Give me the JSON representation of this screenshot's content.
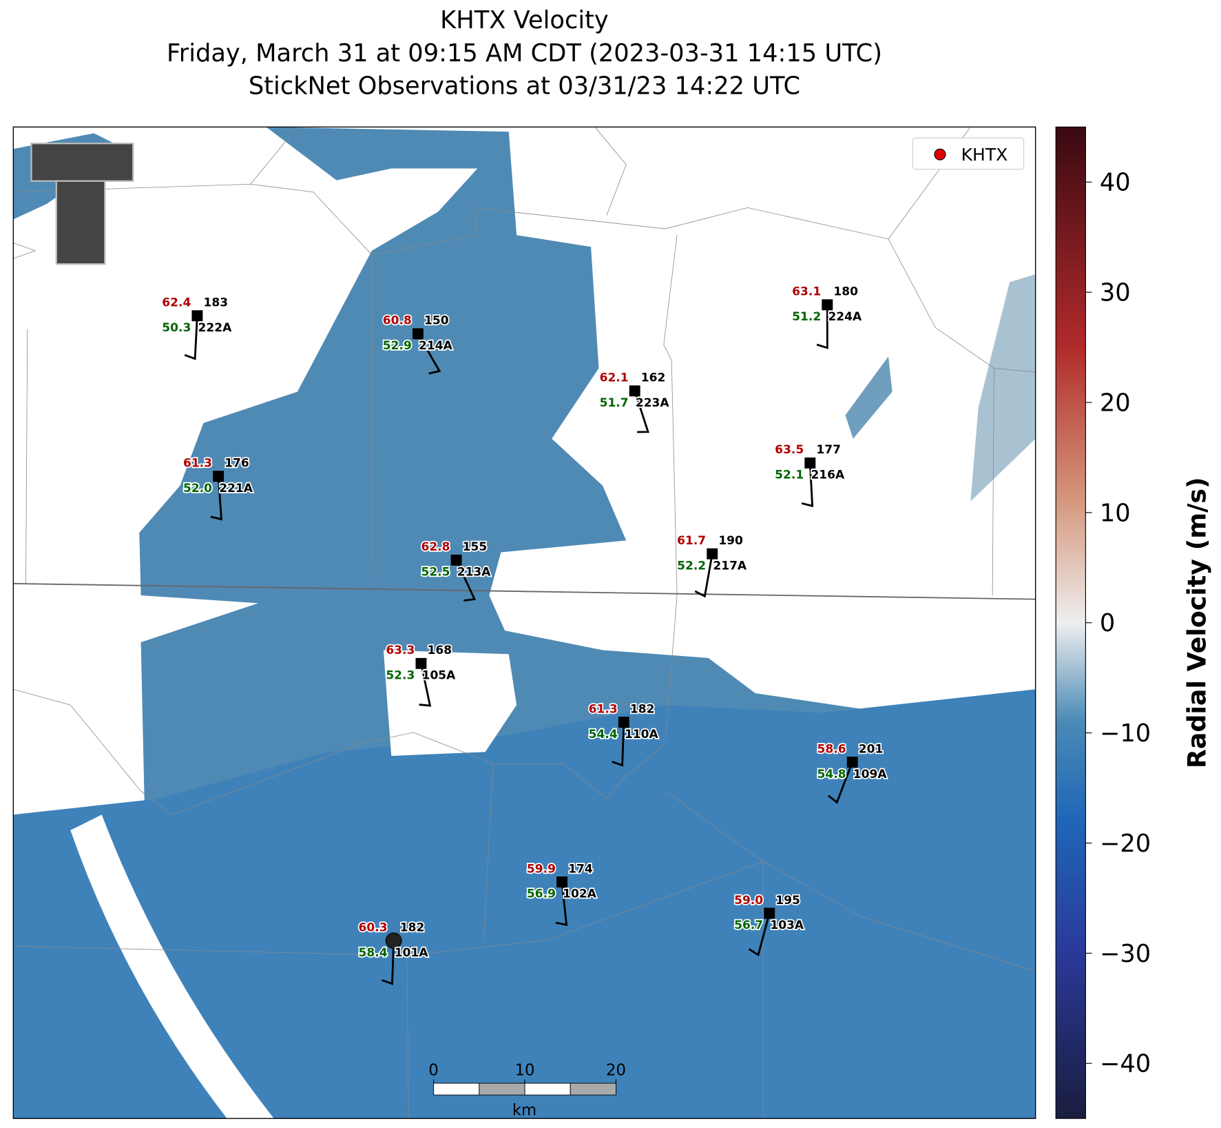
{
  "title": "KHTX Velocity",
  "subtitle": "Friday, March 31 at 09:15 AM CDT (2023-03-31 14:15 UTC)",
  "observation_time": "StickNet Observations at 03/31/23 14:22 UTC",
  "legend": {
    "label": "KHTX",
    "color": "#e00000"
  },
  "colorbar": {
    "label": "Radial Velocity (m/s)",
    "lim": [
      -45,
      45
    ],
    "ticks": [
      {
        "value": -40,
        "label": "−40"
      },
      {
        "value": -30,
        "label": "−30"
      },
      {
        "value": -20,
        "label": "−20"
      },
      {
        "value": -10,
        "label": "−10"
      },
      0,
      10,
      20,
      30,
      40
    ]
  },
  "scale_bar": {
    "ticks": [
      0,
      10,
      20
    ],
    "unit": "km"
  },
  "stations": [
    {
      "id": "222A",
      "temperature": "62.4",
      "dewpoint": "50.3",
      "direction": 183
    },
    {
      "id": "214A",
      "temperature": "60.8",
      "dewpoint": "52.9",
      "direction": 150
    },
    {
      "id": "223A",
      "temperature": "62.1",
      "dewpoint": "51.7",
      "direction": 162
    },
    {
      "id": "224A",
      "temperature": "63.1",
      "dewpoint": "51.2",
      "direction": 180
    },
    {
      "id": "216A",
      "temperature": "63.5",
      "dewpoint": "52.1",
      "direction": 177
    },
    {
      "id": "221A",
      "temperature": "61.3",
      "dewpoint": "52.0",
      "direction": 176
    },
    {
      "id": "213A",
      "temperature": "62.8",
      "dewpoint": "52.5",
      "direction": 155
    },
    {
      "id": "217A",
      "temperature": "61.7",
      "dewpoint": "52.2",
      "direction": 190
    },
    {
      "id": "105A",
      "temperature": "63.3",
      "dewpoint": "52.3",
      "direction": 168
    },
    {
      "id": "110A",
      "temperature": "61.3",
      "dewpoint": "54.4",
      "direction": 182
    },
    {
      "id": "109A",
      "temperature": "58.6",
      "dewpoint": "54.8",
      "direction": 201
    },
    {
      "id": "102A",
      "temperature": "59.9",
      "dewpoint": "56.9",
      "direction": 174
    },
    {
      "id": "103A",
      "temperature": "59.0",
      "dewpoint": "56.7",
      "direction": 195
    },
    {
      "id": "101A",
      "temperature": "60.3",
      "dewpoint": "58.4",
      "direction": 182
    }
  ]
}
